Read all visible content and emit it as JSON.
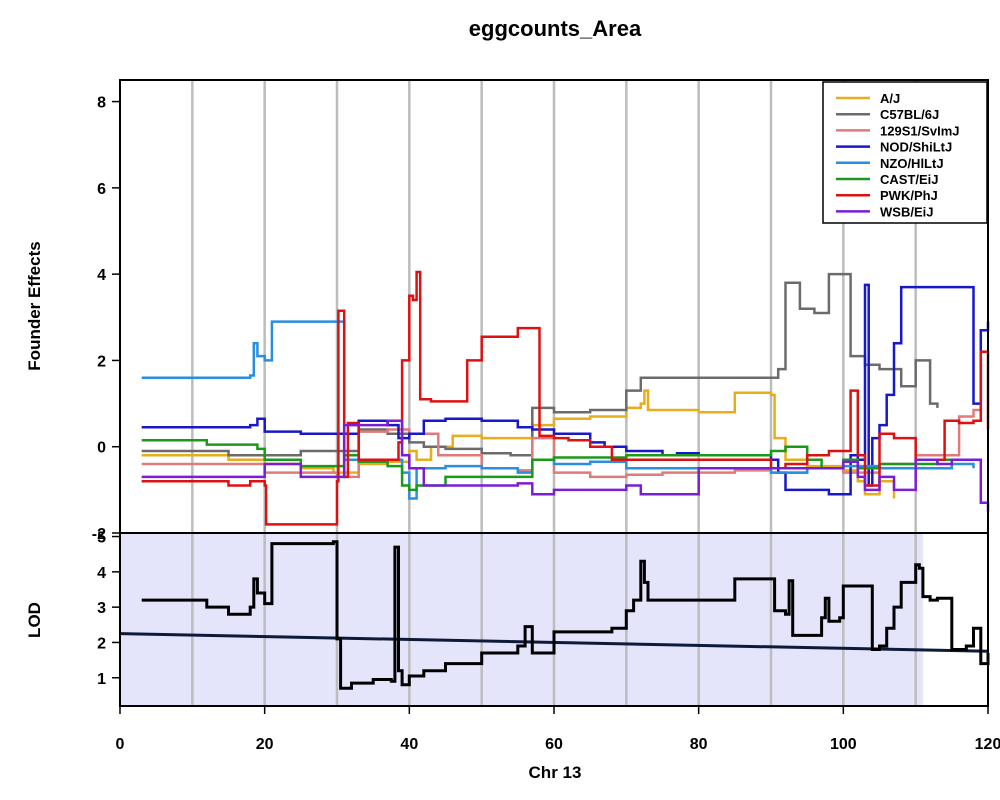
{
  "chart_data": {
    "type": "line",
    "title": "eggcounts_Area",
    "xlabel": "Chr 13",
    "xlim": [
      0,
      120
    ],
    "x_ticks": [
      0,
      20,
      40,
      60,
      80,
      100,
      120
    ],
    "vertical_gridlines": [
      10,
      20,
      30,
      40,
      50,
      60,
      70,
      80,
      90,
      100,
      110
    ],
    "legend_position": "top-right",
    "top_panel": {
      "ylabel": "Founder Effects",
      "ylim": [
        -2,
        8.5
      ],
      "y_ticks": [
        -2,
        0,
        2,
        4,
        6,
        8
      ],
      "series": [
        {
          "name": "A/J",
          "color": "#e6ae1a",
          "x": [
            3,
            10,
            15,
            18,
            20,
            25,
            29.5,
            33,
            37,
            40,
            41,
            43,
            46,
            50,
            54,
            57,
            60,
            65,
            70,
            72,
            72.5,
            73,
            80,
            85,
            90,
            90.5,
            92,
            95,
            100,
            102,
            103,
            105,
            107
          ],
          "y": [
            -0.2,
            -0.2,
            -0.3,
            -0.3,
            -0.4,
            -0.5,
            -0.6,
            -0.4,
            -0.35,
            -0.1,
            -0.3,
            0.0,
            0.25,
            0.2,
            0.2,
            0.5,
            0.65,
            0.7,
            0.9,
            1.0,
            1.3,
            0.85,
            0.8,
            1.25,
            1.2,
            0.2,
            -0.3,
            -0.45,
            -0.55,
            -0.8,
            -1.1,
            -0.8,
            -1.2
          ]
        },
        {
          "name": "C57BL/6J",
          "color": "#6b6b6b",
          "x": [
            3,
            10,
            15,
            20,
            25,
            30,
            33,
            37,
            40,
            42,
            45,
            50,
            54,
            57,
            60,
            65,
            70,
            72,
            80,
            85,
            90,
            91,
            92,
            94,
            96,
            98,
            100,
            101,
            103,
            105,
            108,
            110,
            112,
            113
          ],
          "y": [
            -0.1,
            -0.1,
            -0.2,
            -0.2,
            -0.1,
            -0.1,
            0.4,
            0.3,
            0.1,
            0.0,
            -0.05,
            -0.15,
            -0.2,
            0.9,
            0.8,
            0.85,
            1.3,
            1.6,
            1.6,
            1.6,
            1.6,
            1.8,
            3.8,
            3.2,
            3.1,
            4.0,
            4.0,
            2.1,
            1.9,
            1.8,
            1.4,
            2.0,
            1.0,
            0.9
          ]
        },
        {
          "name": "129S1/SvImJ",
          "color": "#e07b7b",
          "x": [
            3,
            10,
            20,
            25,
            30,
            33,
            37,
            40,
            44,
            50,
            55,
            57,
            60,
            65,
            70,
            75,
            80,
            85,
            90,
            95,
            100,
            105,
            110,
            113,
            116,
            118,
            119
          ],
          "y": [
            -0.4,
            -0.4,
            -0.6,
            -0.6,
            -0.7,
            0.35,
            0.4,
            0.3,
            -0.2,
            -0.5,
            -0.55,
            0.2,
            -0.6,
            -0.7,
            -0.65,
            -0.6,
            -0.6,
            -0.55,
            -0.6,
            -0.5,
            -0.6,
            -0.4,
            -0.2,
            -0.2,
            0.7,
            0.85,
            0.9
          ]
        },
        {
          "name": "NOD/ShiLtJ",
          "color": "#1818c8",
          "x": [
            3,
            10,
            18,
            19,
            20,
            25,
            29.5,
            33,
            37,
            38.5,
            40,
            42,
            45,
            50,
            55,
            57,
            60,
            65,
            67,
            70,
            75,
            77,
            80,
            85,
            90,
            91,
            92,
            95,
            98,
            100,
            101,
            102,
            103,
            103.5,
            104,
            105,
            106,
            107,
            108,
            118,
            119,
            120
          ],
          "y": [
            0.45,
            0.45,
            0.5,
            0.65,
            0.35,
            0.3,
            0.3,
            0.6,
            0.5,
            0.2,
            0.3,
            0.6,
            0.65,
            0.6,
            0.45,
            0.4,
            0.3,
            0.1,
            0.0,
            -0.1,
            -0.2,
            -0.15,
            -0.2,
            -0.2,
            -0.3,
            -0.6,
            -1.0,
            -1.0,
            -1.1,
            -1.1,
            -0.2,
            -0.3,
            3.75,
            -0.9,
            0.2,
            0.5,
            1.2,
            2.4,
            3.7,
            1.0,
            2.7,
            2.9
          ]
        },
        {
          "name": "NZO/HlLtJ",
          "color": "#2a8fe0",
          "x": [
            3,
            10,
            18,
            18.5,
            19,
            20,
            21,
            25,
            29.5,
            31,
            33,
            37,
            39,
            40,
            41,
            45,
            50,
            55,
            57,
            60,
            65,
            70,
            75,
            80,
            85,
            90,
            95,
            100,
            105,
            110,
            115,
            118
          ],
          "y": [
            1.6,
            1.6,
            1.65,
            2.4,
            2.1,
            2.0,
            2.9,
            2.9,
            2.9,
            -0.3,
            -0.3,
            -0.3,
            -0.6,
            -1.2,
            -0.5,
            -0.45,
            -0.5,
            -0.6,
            -0.3,
            -0.4,
            -0.35,
            -0.5,
            -0.5,
            -0.5,
            -0.5,
            -0.6,
            -0.5,
            -0.45,
            -0.5,
            -0.5,
            -0.4,
            -0.5
          ]
        },
        {
          "name": "CAST/EiJ",
          "color": "#1a9a1a",
          "x": [
            3,
            10,
            12,
            18,
            19,
            20,
            25,
            29.5,
            31,
            33,
            37,
            39,
            40,
            41,
            45,
            50,
            55,
            57,
            60,
            65,
            70,
            75,
            80,
            85,
            90,
            92,
            95,
            97,
            100,
            102,
            105,
            110,
            113,
            115
          ],
          "y": [
            0.15,
            0.15,
            0.05,
            0.05,
            -0.05,
            -0.3,
            -0.45,
            -0.45,
            -0.2,
            -0.35,
            -0.45,
            -0.9,
            -1.0,
            -0.9,
            -0.7,
            -0.7,
            -0.7,
            -0.3,
            -0.25,
            -0.25,
            -0.2,
            -0.2,
            -0.2,
            -0.2,
            -0.1,
            0.0,
            -0.3,
            -0.5,
            -0.3,
            -0.5,
            -0.4,
            -0.4,
            -0.3,
            -0.4
          ]
        },
        {
          "name": "PWK/PhJ",
          "color": "#dd1111",
          "x": [
            3,
            10,
            15,
            18,
            20,
            20.2,
            30,
            30.2,
            31,
            31.5,
            33,
            37,
            38.5,
            39,
            40,
            40.5,
            41,
            41.5,
            43,
            47,
            48,
            50,
            55,
            57,
            58,
            60,
            62,
            65,
            68,
            70,
            75,
            80,
            85,
            90,
            92,
            95,
            98,
            100,
            101,
            102,
            103,
            105,
            107,
            110,
            112,
            114,
            116,
            118,
            119,
            120
          ],
          "y": [
            -0.8,
            -0.8,
            -0.9,
            -0.8,
            -0.9,
            -1.8,
            -0.8,
            3.15,
            -0.7,
            0.55,
            -0.3,
            -0.3,
            0.1,
            2.0,
            3.5,
            3.4,
            4.05,
            1.1,
            1.05,
            1.05,
            2.0,
            2.55,
            2.75,
            2.75,
            0.25,
            0.2,
            0.15,
            0.0,
            -0.3,
            -0.3,
            -0.3,
            -0.3,
            -0.3,
            -0.5,
            -0.4,
            -0.2,
            -0.1,
            -0.1,
            1.3,
            -0.2,
            -0.9,
            0.3,
            0.2,
            -0.3,
            -0.3,
            0.6,
            0.55,
            0.6,
            2.2,
            0.4
          ]
        },
        {
          "name": "WSB/EiJ",
          "color": "#7a1ed6",
          "x": [
            3,
            10,
            18,
            20,
            25,
            29.5,
            31,
            33,
            37,
            39,
            40,
            42,
            45,
            50,
            55,
            57,
            60,
            65,
            70,
            72,
            77,
            80,
            85,
            90,
            95,
            100,
            102,
            103,
            105,
            107,
            110,
            113,
            115,
            118,
            119,
            120
          ],
          "y": [
            -0.7,
            -0.7,
            -0.7,
            -0.4,
            -0.7,
            -0.7,
            0.5,
            0.5,
            0.6,
            -0.2,
            -0.5,
            -0.9,
            -0.9,
            -0.9,
            -0.85,
            -1.1,
            -1.0,
            -1.0,
            -0.9,
            -1.1,
            -1.1,
            -0.5,
            -0.5,
            -0.5,
            -0.5,
            -0.35,
            -0.7,
            -1.0,
            -0.7,
            -1.0,
            -0.3,
            -0.4,
            -0.3,
            -0.3,
            -1.3,
            -1.5
          ]
        }
      ]
    },
    "bottom_panel": {
      "ylabel": "LOD",
      "ylim": [
        0.2,
        5.1
      ],
      "y_ticks": [
        1,
        2,
        3,
        4,
        5
      ],
      "shaded_region_x": [
        0,
        111
      ],
      "shaded_color": "#e4e4fb",
      "threshold": {
        "x": [
          0,
          120
        ],
        "y": [
          2.25,
          1.75
        ]
      },
      "lod": {
        "x": [
          3,
          10,
          12,
          15,
          18,
          18.5,
          19,
          20,
          21,
          25,
          29.5,
          30,
          30.5,
          32,
          35,
          37.5,
          38,
          38.5,
          39,
          40,
          42,
          45,
          50,
          55,
          56,
          57,
          58,
          60,
          65,
          68,
          70,
          71,
          72,
          72.5,
          73,
          75,
          80,
          84,
          85,
          90,
          90.5,
          92,
          92.5,
          93,
          95,
          97,
          97.5,
          98,
          99.5,
          100,
          102,
          102.5,
          104,
          105,
          106,
          107,
          108,
          109,
          110,
          110.5,
          111,
          112,
          113,
          115,
          117,
          118,
          119,
          120
        ],
        "y": [
          3.2,
          3.2,
          3.0,
          2.8,
          3.0,
          3.8,
          3.4,
          3.1,
          4.8,
          4.8,
          4.85,
          2.1,
          0.7,
          0.85,
          0.95,
          0.9,
          4.7,
          1.2,
          0.8,
          1.05,
          1.2,
          1.4,
          1.7,
          1.9,
          2.45,
          1.7,
          1.7,
          2.3,
          2.3,
          2.4,
          2.9,
          3.2,
          4.3,
          3.7,
          3.2,
          3.2,
          3.2,
          3.2,
          3.8,
          3.8,
          2.9,
          2.8,
          3.75,
          2.2,
          2.2,
          2.7,
          3.25,
          2.6,
          2.7,
          3.6,
          3.6,
          3.6,
          1.8,
          1.9,
          2.4,
          3.0,
          3.7,
          3.7,
          4.2,
          4.1,
          3.3,
          3.2,
          3.25,
          1.8,
          1.9,
          2.4,
          1.4,
          1.7
        ]
      }
    }
  }
}
